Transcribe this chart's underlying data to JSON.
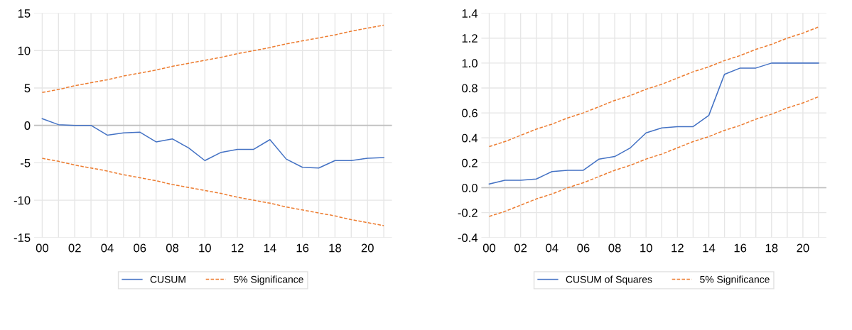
{
  "chart_data": [
    {
      "type": "line",
      "categories": [
        "00",
        null,
        "02",
        null,
        "04",
        null,
        "06",
        null,
        "08",
        null,
        "10",
        null,
        "12",
        null,
        "14",
        null,
        "16",
        null,
        "18",
        null,
        "20",
        null
      ],
      "series": [
        {
          "name": "CUSUM",
          "color": "#4472c4",
          "line_style": "solid",
          "values": [
            0.9,
            0.1,
            0.0,
            0.0,
            -1.3,
            -1.0,
            -0.9,
            -2.2,
            -1.8,
            -3.0,
            -4.7,
            -3.6,
            -3.2,
            -3.2,
            -1.9,
            -4.5,
            -5.6,
            -5.7,
            -4.7,
            -4.7,
            -4.4,
            -4.3
          ]
        },
        {
          "name": "5% Significance",
          "color": "#ed7d31",
          "line_style": "dashed",
          "values": [
            4.4,
            4.8,
            5.3,
            5.7,
            6.1,
            6.6,
            7.0,
            7.4,
            7.9,
            8.3,
            8.7,
            9.1,
            9.6,
            10.0,
            10.4,
            10.9,
            11.3,
            11.7,
            12.1,
            12.6,
            13.0,
            13.4
          ]
        },
        {
          "color": "#ed7d31",
          "line_style": "dashed",
          "values": [
            -4.4,
            -4.8,
            -5.3,
            -5.7,
            -6.1,
            -6.6,
            -7.0,
            -7.4,
            -7.9,
            -8.3,
            -8.7,
            -9.1,
            -9.6,
            -10.0,
            -10.4,
            -10.9,
            -11.3,
            -11.7,
            -12.1,
            -12.6,
            -13.0,
            -13.4
          ]
        }
      ],
      "ylim": [
        -15,
        15
      ],
      "yticks": [
        -15,
        -10,
        -5,
        0,
        5,
        10,
        15
      ],
      "grid": true,
      "legend": "bottom",
      "marker": "none",
      "ref_lines": [
        {
          "axis": "y",
          "value": 0,
          "color": "#bfbfbf"
        }
      ]
    },
    {
      "type": "line",
      "categories": [
        "00",
        null,
        "02",
        null,
        "04",
        null,
        "06",
        null,
        "08",
        null,
        "10",
        null,
        "12",
        null,
        "14",
        null,
        "16",
        null,
        "18",
        null,
        "20",
        null
      ],
      "series": [
        {
          "name": "CUSUM of Squares",
          "color": "#4472c4",
          "line_style": "solid",
          "values": [
            0.03,
            0.06,
            0.06,
            0.07,
            0.13,
            0.14,
            0.14,
            0.23,
            0.25,
            0.32,
            0.44,
            0.48,
            0.49,
            0.49,
            0.58,
            0.91,
            0.96,
            0.96,
            1.0,
            1.0,
            1.0,
            1.0
          ]
        },
        {
          "name": "5% Significance",
          "color": "#ed7d31",
          "line_style": "dashed",
          "values": [
            0.33,
            0.37,
            0.42,
            0.47,
            0.51,
            0.56,
            0.6,
            0.65,
            0.7,
            0.74,
            0.79,
            0.83,
            0.88,
            0.93,
            0.97,
            1.02,
            1.06,
            1.11,
            1.15,
            1.2,
            1.24,
            1.29
          ]
        },
        {
          "color": "#ed7d31",
          "line_style": "dashed",
          "values": [
            -0.23,
            -0.19,
            -0.14,
            -0.09,
            -0.05,
            0.0,
            0.04,
            0.09,
            0.14,
            0.18,
            0.23,
            0.27,
            0.32,
            0.37,
            0.41,
            0.46,
            0.5,
            0.55,
            0.59,
            0.64,
            0.68,
            0.73
          ]
        }
      ],
      "ylim": [
        -0.4,
        1.4
      ],
      "yticks": [
        {
          "value": -0.4,
          "label": "-0.4"
        },
        {
          "value": -0.2,
          "label": "-0.2"
        },
        {
          "value": 0.0,
          "label": "0.0"
        },
        {
          "value": 0.2,
          "label": "0.2"
        },
        {
          "value": 0.4,
          "label": "0.4"
        },
        {
          "value": 0.6,
          "label": "0.6"
        },
        {
          "value": 0.8,
          "label": "0.8"
        },
        {
          "value": 1.0,
          "label": "1.0"
        },
        {
          "value": 1.2,
          "label": "1.2"
        },
        {
          "value": 1.4,
          "label": "1.4"
        }
      ],
      "grid": true,
      "legend": "bottom",
      "marker": "none",
      "ref_lines": [
        {
          "axis": "y",
          "value": 0,
          "color": "#bfbfbf"
        }
      ]
    }
  ]
}
